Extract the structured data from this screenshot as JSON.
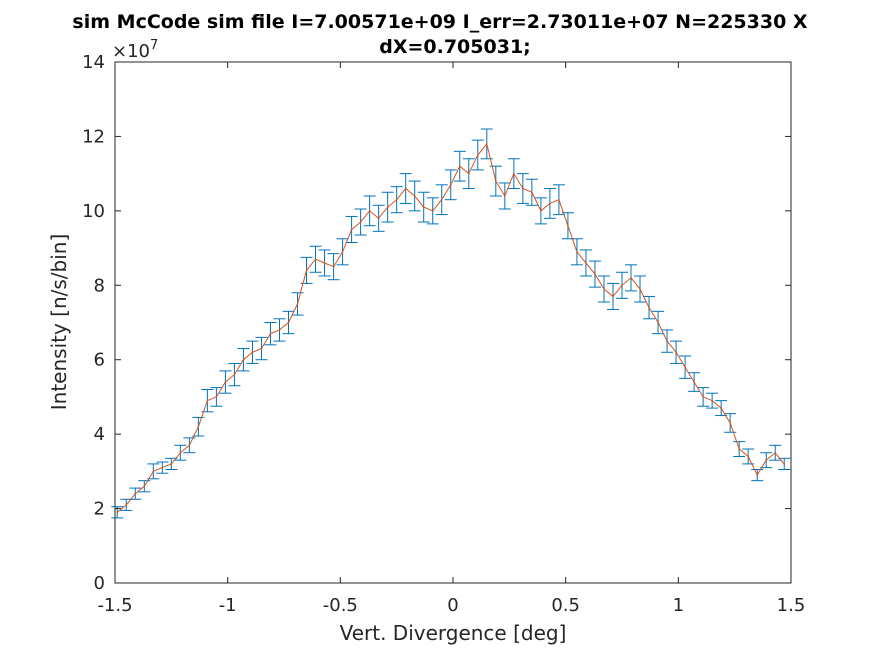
{
  "chart_data": {
    "type": "line",
    "title": "sim McCode sim file I=7.00571e+09 I_err=2.73011e+07 N=225330 X",
    "title_line2": "dX=0.705031;",
    "xlabel": "Vert. Divergence [deg]",
    "ylabel": "Intensity [n/s/bin]",
    "y_exponent_label": "×10",
    "y_exponent_power": "7",
    "xlim": [
      -1.5,
      1.5
    ],
    "ylim": [
      0,
      14
    ],
    "x_ticks": [
      -1.5,
      -1,
      -0.5,
      0,
      0.5,
      1,
      1.5
    ],
    "x_tick_labels": [
      "-1.5",
      "-1",
      "-0.5",
      "0",
      "0.5",
      "1",
      "1.5"
    ],
    "y_ticks": [
      0,
      2,
      4,
      6,
      8,
      10,
      12,
      14
    ],
    "y_tick_labels": [
      "0",
      "2",
      "4",
      "6",
      "8",
      "10",
      "12",
      "14"
    ],
    "grid": false,
    "legend": "none",
    "colors": {
      "errorbar": "#0072bd",
      "line": "#d95319",
      "axis": "#262626"
    },
    "x": [
      -1.49,
      -1.45,
      -1.41,
      -1.37,
      -1.33,
      -1.29,
      -1.25,
      -1.21,
      -1.17,
      -1.13,
      -1.09,
      -1.05,
      -1.01,
      -0.97,
      -0.93,
      -0.89,
      -0.85,
      -0.81,
      -0.77,
      -0.73,
      -0.69,
      -0.65,
      -0.61,
      -0.57,
      -0.53,
      -0.49,
      -0.45,
      -0.41,
      -0.37,
      -0.33,
      -0.29,
      -0.25,
      -0.21,
      -0.17,
      -0.13,
      -0.09,
      -0.05,
      -0.01,
      0.03,
      0.07,
      0.11,
      0.15,
      0.19,
      0.23,
      0.27,
      0.31,
      0.35,
      0.39,
      0.43,
      0.47,
      0.51,
      0.55,
      0.59,
      0.63,
      0.67,
      0.71,
      0.75,
      0.79,
      0.83,
      0.87,
      0.91,
      0.95,
      0.99,
      1.03,
      1.07,
      1.11,
      1.15,
      1.19,
      1.23,
      1.27,
      1.31,
      1.35,
      1.39,
      1.43,
      1.47
    ],
    "y": [
      1.9,
      2.1,
      2.4,
      2.6,
      3.0,
      3.1,
      3.2,
      3.5,
      3.7,
      4.2,
      4.9,
      5.0,
      5.4,
      5.6,
      6.0,
      6.2,
      6.3,
      6.7,
      6.8,
      7.0,
      7.5,
      8.4,
      8.7,
      8.6,
      8.5,
      8.9,
      9.5,
      9.7,
      10.0,
      9.8,
      10.1,
      10.3,
      10.6,
      10.4,
      10.1,
      10.0,
      10.3,
      10.7,
      11.2,
      11.0,
      11.5,
      11.8,
      10.8,
      10.4,
      11.0,
      10.6,
      10.5,
      10.0,
      10.2,
      10.3,
      9.6,
      8.9,
      8.6,
      8.3,
      7.9,
      7.7,
      8.0,
      8.2,
      7.9,
      7.4,
      7.0,
      6.5,
      6.2,
      5.8,
      5.4,
      5.0,
      4.9,
      4.7,
      4.3,
      3.6,
      3.4,
      2.9,
      3.3,
      3.5,
      3.2
    ],
    "err": [
      0.15,
      0.15,
      0.15,
      0.15,
      0.2,
      0.15,
      0.15,
      0.2,
      0.2,
      0.25,
      0.3,
      0.25,
      0.3,
      0.3,
      0.3,
      0.3,
      0.3,
      0.3,
      0.3,
      0.3,
      0.3,
      0.35,
      0.35,
      0.35,
      0.35,
      0.35,
      0.35,
      0.35,
      0.4,
      0.35,
      0.4,
      0.35,
      0.4,
      0.4,
      0.4,
      0.35,
      0.4,
      0.4,
      0.4,
      0.4,
      0.4,
      0.4,
      0.4,
      0.35,
      0.4,
      0.4,
      0.35,
      0.35,
      0.4,
      0.4,
      0.35,
      0.35,
      0.35,
      0.35,
      0.35,
      0.35,
      0.35,
      0.35,
      0.35,
      0.3,
      0.3,
      0.3,
      0.3,
      0.3,
      0.25,
      0.25,
      0.2,
      0.2,
      0.25,
      0.2,
      0.2,
      0.15,
      0.2,
      0.2,
      0.15
    ]
  }
}
